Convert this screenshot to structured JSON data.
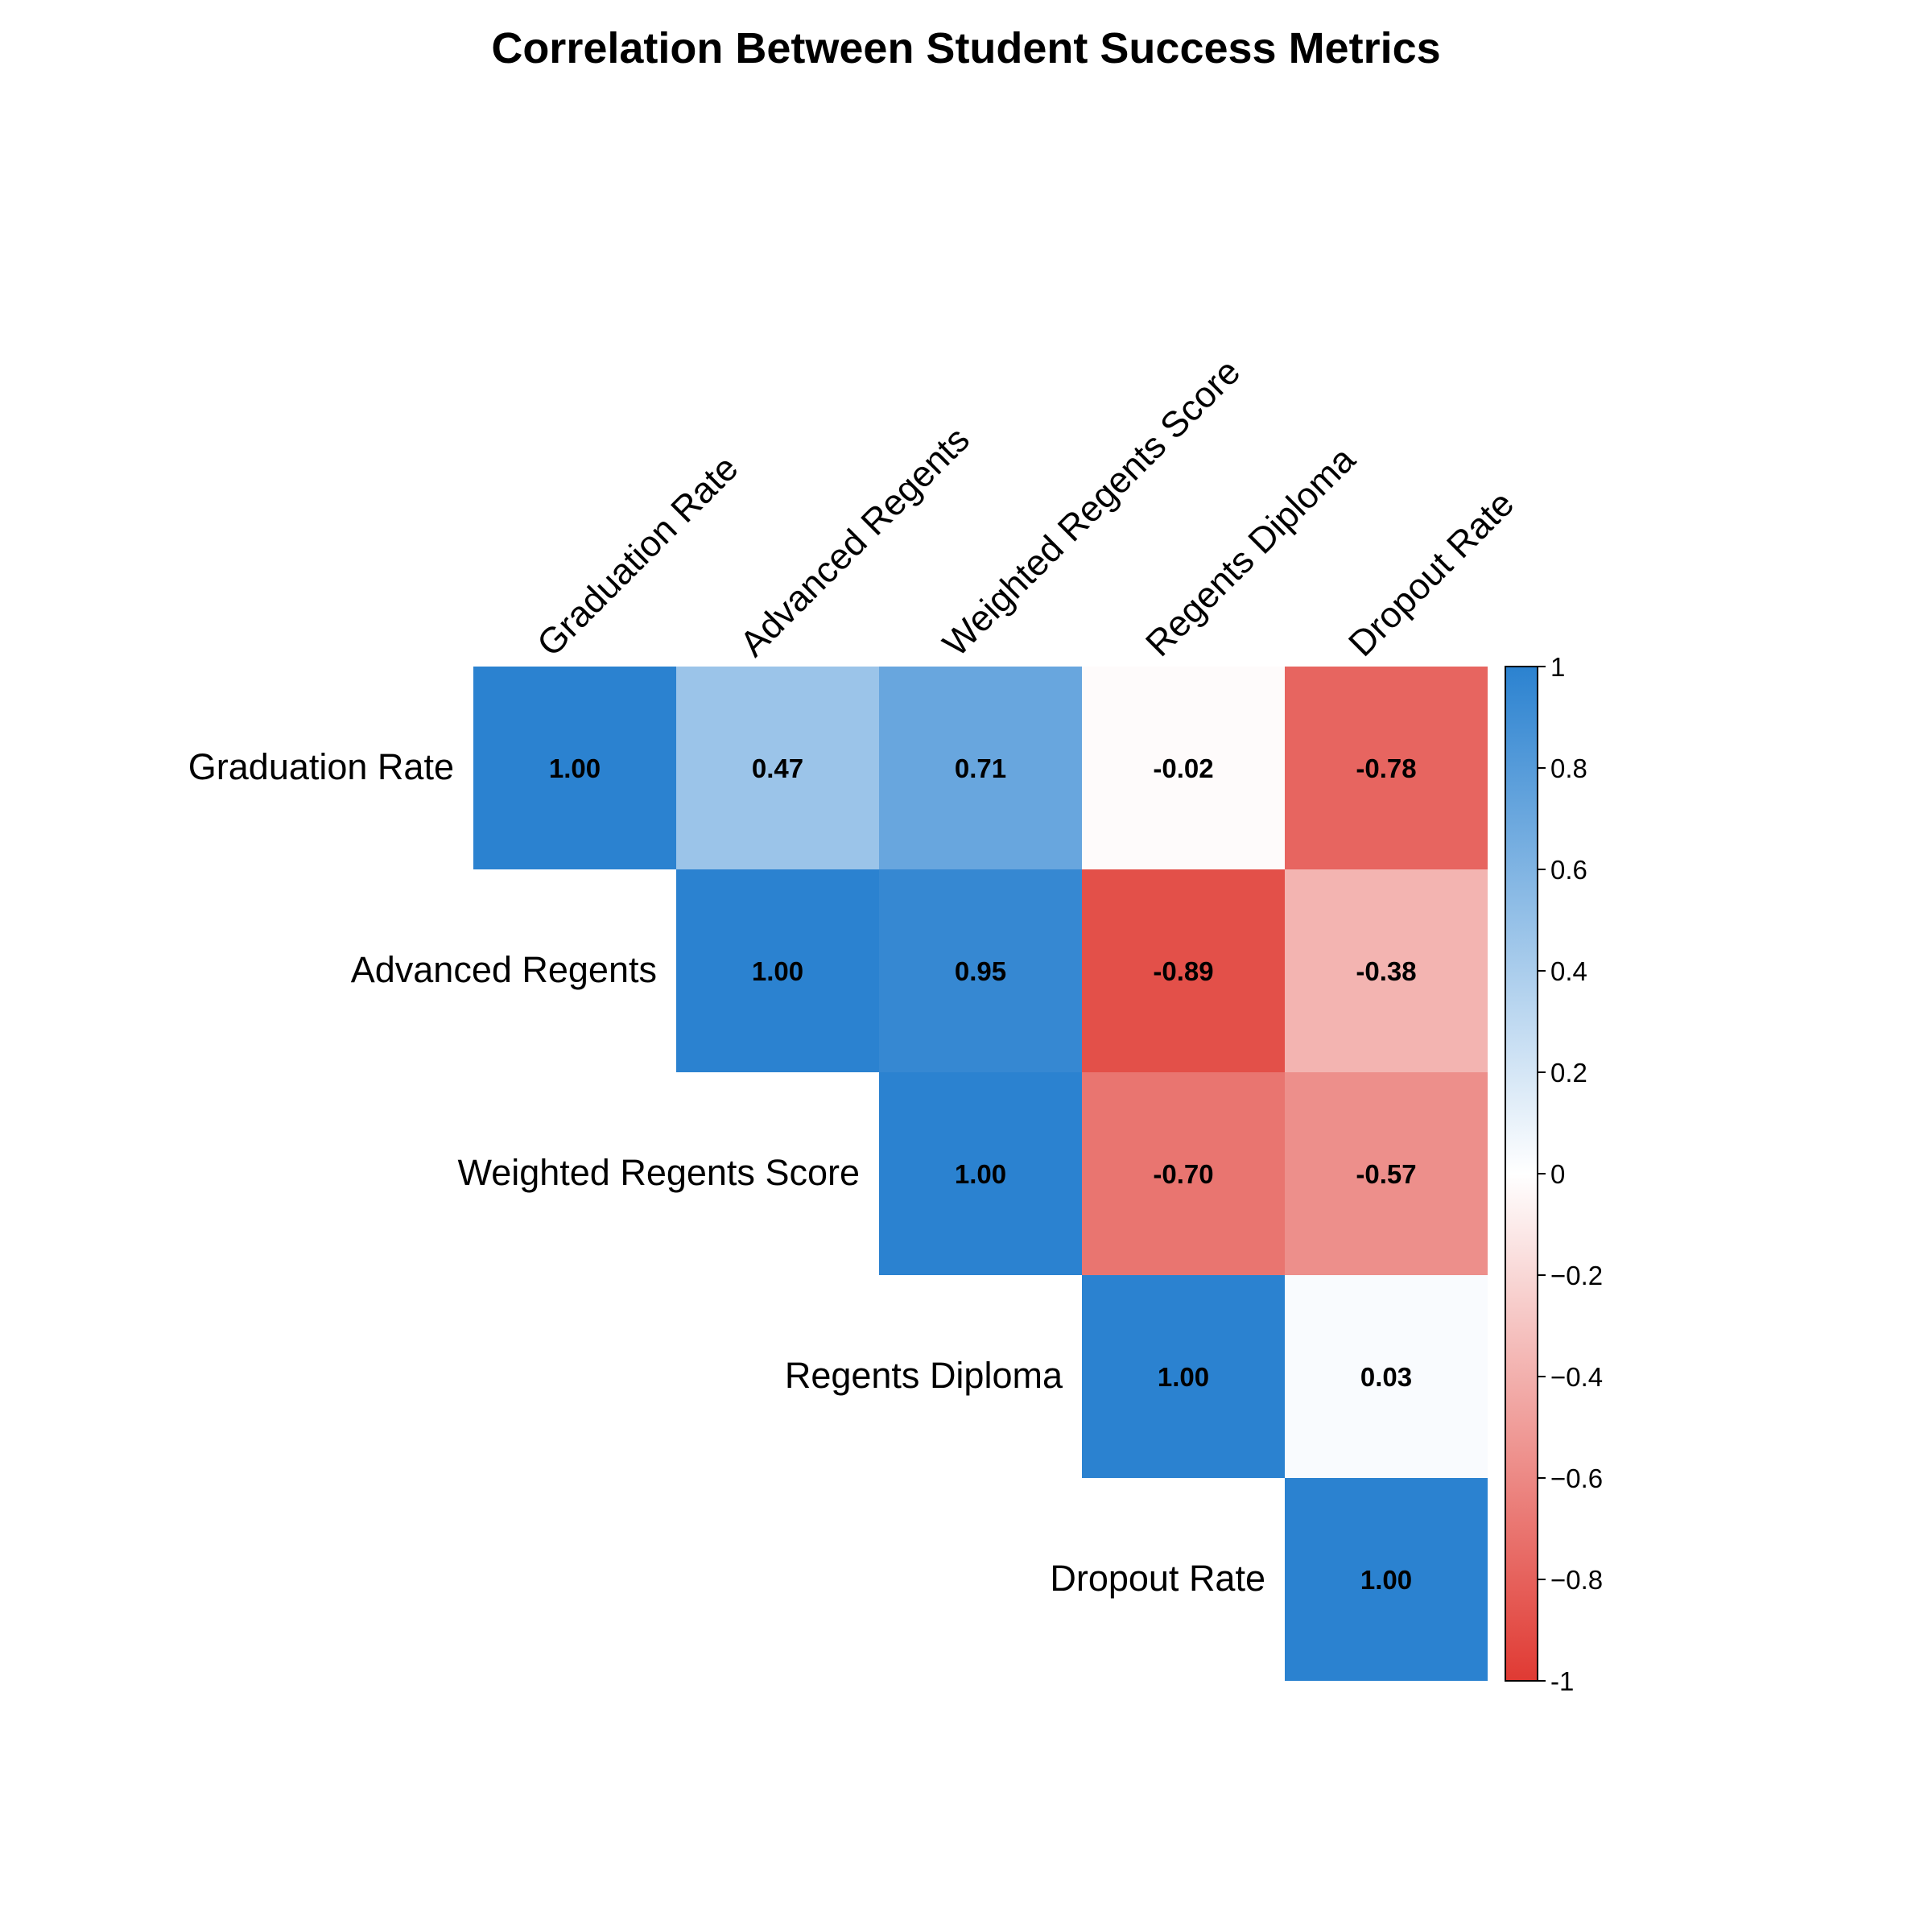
{
  "chart_data": {
    "type": "heatmap",
    "title": "Correlation Between Student Success Metrics",
    "variables": [
      "Graduation Rate",
      "Advanced Regents",
      "Weighted Regents Score",
      "Regents Diploma",
      "Dropout Rate"
    ],
    "display": "upper-triangle",
    "matrix": [
      [
        1.0,
        0.47,
        0.71,
        -0.02,
        -0.78
      ],
      [
        0.47,
        1.0,
        0.95,
        -0.89,
        -0.38
      ],
      [
        0.71,
        0.95,
        1.0,
        -0.7,
        -0.57
      ],
      [
        -0.02,
        -0.89,
        -0.7,
        1.0,
        0.03
      ],
      [
        -0.78,
        -0.38,
        -0.57,
        0.03,
        1.0
      ]
    ],
    "value_labels": [
      [
        "1.00",
        "0.47",
        "0.71",
        "-0.02",
        "-0.78"
      ],
      [
        "",
        "1.00",
        "0.95",
        "-0.89",
        "-0.38"
      ],
      [
        "",
        "",
        "1.00",
        "-0.70",
        "-0.57"
      ],
      [
        "",
        "",
        "",
        "1.00",
        "0.03"
      ],
      [
        "",
        "",
        "",
        "",
        "1.00"
      ]
    ],
    "colorbar": {
      "range": [
        -1,
        1
      ],
      "ticks": [
        1,
        0.8,
        0.6,
        0.4,
        0.2,
        0,
        -0.2,
        -0.4,
        -0.6,
        -0.8,
        -1
      ],
      "tick_labels": [
        "1",
        "0.8",
        "0.6",
        "0.4",
        "0.2",
        "0",
        "−0.2",
        "−0.4",
        "−0.6",
        "−0.8",
        "-1"
      ],
      "colors": {
        "negative": "#e03a33",
        "zero": "#ffffff",
        "positive": "#2b82d0"
      }
    },
    "grid": false
  }
}
